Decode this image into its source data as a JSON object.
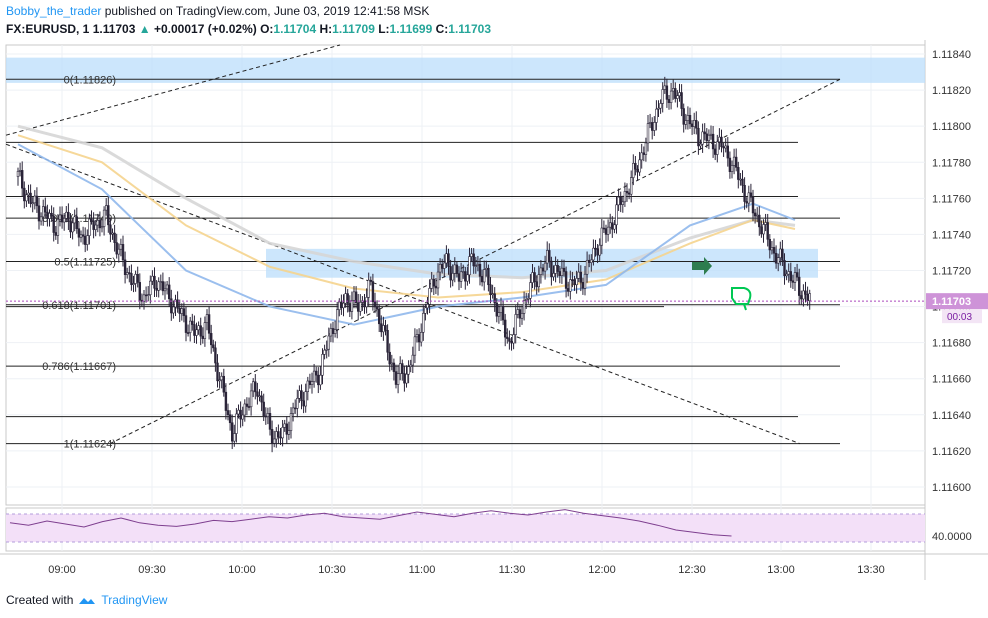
{
  "header": {
    "author": "Bobby_the_trader",
    "published": "published on TradingView.com, June 03, 2019 12:41:58 MSK",
    "symbol": "FX:EURUSD, 1",
    "last": "1.11703",
    "arrow": "▲",
    "change": "+0.00017 (+0.02%)",
    "o_label": "O:",
    "o_val": "1.11704",
    "h_label": "H:",
    "h_val": "1.11709",
    "l_label": "L:",
    "l_val": "1.11699",
    "c_label": "C:",
    "c_val": "1.11703"
  },
  "footer": {
    "created_with": "Created with",
    "brand": "TradingView",
    "logo_icon": "tradingview-cloud-icon"
  },
  "price_tag": {
    "value": "1.11703",
    "countdown": "00:03"
  },
  "rsi": {
    "level_label": "40.0000"
  },
  "colors": {
    "up": "#26a69a",
    "accent": "#2196f3",
    "highlight_box": "#bbdefb",
    "tag": "#ce93d8",
    "ma_yellow": "#f5d48e",
    "ma_grey": "#d6d6d6",
    "ma_blue": "#90b8ec",
    "arrow_green": "#2e7d4f",
    "thumb_green": "#00c853"
  },
  "chart_data": {
    "type": "candlestick",
    "ylim": [
      1.1159,
      1.11845
    ],
    "y_ticks": [
      "1.11840",
      "1.11820",
      "1.11800",
      "1.11780",
      "1.11760",
      "1.11740",
      "1.11720",
      "1.11700",
      "1.11680",
      "1.11660",
      "1.11640",
      "1.11620",
      "1.11600"
    ],
    "x_ticks": [
      "09:00",
      "09:30",
      "10:00",
      "10:30",
      "11:00",
      "11:30",
      "12:00",
      "12:30",
      "13:00",
      "13:30"
    ],
    "fib_levels": [
      {
        "label": "0(1.11826)",
        "value": 1.11826
      },
      {
        "label": "0.382(1.11749)",
        "value": 1.11749
      },
      {
        "label": "0.5(1.11725)",
        "value": 1.11725
      },
      {
        "label": "0.618(1.11701)",
        "value": 1.11701
      },
      {
        "label": "0.786(1.11667)",
        "value": 1.11667
      },
      {
        "label": "1(1.11624)",
        "value": 1.11624
      }
    ],
    "last_price": 1.11703,
    "close_path": [
      [
        0,
        1.11772
      ],
      [
        6,
        1.11758
      ],
      [
        12,
        1.11752
      ],
      [
        18,
        1.11745
      ],
      [
        24,
        1.1175
      ],
      [
        30,
        1.11738
      ],
      [
        36,
        1.11745
      ],
      [
        42,
        1.1175
      ],
      [
        48,
        1.1173
      ],
      [
        54,
        1.11715
      ],
      [
        60,
        1.11705
      ],
      [
        66,
        1.11715
      ],
      [
        72,
        1.11705
      ],
      [
        78,
        1.11695
      ],
      [
        84,
        1.11685
      ],
      [
        90,
        1.1169
      ],
      [
        96,
        1.1166
      ],
      [
        102,
        1.1163
      ],
      [
        108,
        1.11645
      ],
      [
        114,
        1.11655
      ],
      [
        120,
        1.1163
      ],
      [
        126,
        1.11628
      ],
      [
        132,
        1.11645
      ],
      [
        138,
        1.11655
      ],
      [
        144,
        1.11665
      ],
      [
        150,
        1.1169
      ],
      [
        156,
        1.11705
      ],
      [
        162,
        1.117
      ],
      [
        168,
        1.1171
      ],
      [
        174,
        1.11685
      ],
      [
        180,
        1.1166
      ],
      [
        186,
        1.11665
      ],
      [
        192,
        1.1169
      ],
      [
        198,
        1.11715
      ],
      [
        204,
        1.11725
      ],
      [
        210,
        1.11715
      ],
      [
        216,
        1.11725
      ],
      [
        222,
        1.11718
      ],
      [
        228,
        1.117
      ],
      [
        234,
        1.1168
      ],
      [
        240,
        1.117
      ],
      [
        246,
        1.11715
      ],
      [
        252,
        1.11725
      ],
      [
        258,
        1.11718
      ],
      [
        264,
        1.11712
      ],
      [
        270,
        1.11718
      ],
      [
        276,
        1.11735
      ],
      [
        282,
        1.11745
      ],
      [
        288,
        1.1176
      ],
      [
        294,
        1.11775
      ],
      [
        300,
        1.11795
      ],
      [
        306,
        1.11815
      ],
      [
        312,
        1.1182
      ],
      [
        318,
        1.11805
      ],
      [
        324,
        1.11795
      ],
      [
        330,
        1.11792
      ],
      [
        336,
        1.11788
      ],
      [
        342,
        1.11775
      ],
      [
        348,
        1.11758
      ],
      [
        354,
        1.11745
      ],
      [
        360,
        1.1173
      ],
      [
        366,
        1.1172
      ],
      [
        372,
        1.1171
      ],
      [
        378,
        1.11703
      ]
    ],
    "ma_yellow": [
      [
        0,
        1.11795
      ],
      [
        40,
        1.1178
      ],
      [
        80,
        1.11745
      ],
      [
        120,
        1.11722
      ],
      [
        160,
        1.1171
      ],
      [
        200,
        1.11705
      ],
      [
        240,
        1.11708
      ],
      [
        280,
        1.11715
      ],
      [
        320,
        1.11735
      ],
      [
        350,
        1.11748
      ],
      [
        370,
        1.11743
      ]
    ],
    "ma_grey": [
      [
        0,
        1.118
      ],
      [
        40,
        1.11788
      ],
      [
        80,
        1.1176
      ],
      [
        120,
        1.11735
      ],
      [
        160,
        1.11725
      ],
      [
        200,
        1.11718
      ],
      [
        240,
        1.11716
      ],
      [
        280,
        1.1172
      ],
      [
        320,
        1.11738
      ],
      [
        350,
        1.11748
      ],
      [
        370,
        1.11745
      ]
    ],
    "ma_blue": [
      [
        0,
        1.1179
      ],
      [
        40,
        1.11765
      ],
      [
        80,
        1.1172
      ],
      [
        120,
        1.117
      ],
      [
        160,
        1.1169
      ],
      [
        200,
        1.117
      ],
      [
        240,
        1.11705
      ],
      [
        280,
        1.11712
      ],
      [
        320,
        1.11745
      ],
      [
        350,
        1.11757
      ],
      [
        370,
        1.11748
      ]
    ],
    "rsi_values": [
      42,
      38,
      45,
      40,
      35,
      44,
      50,
      42,
      38,
      36,
      40,
      46,
      44,
      48,
      52,
      50,
      55,
      58,
      52,
      50,
      48,
      54,
      60,
      56,
      52,
      58,
      62,
      58,
      55,
      60,
      64,
      58,
      54,
      50,
      45,
      38,
      30,
      26,
      22,
      20
    ]
  }
}
